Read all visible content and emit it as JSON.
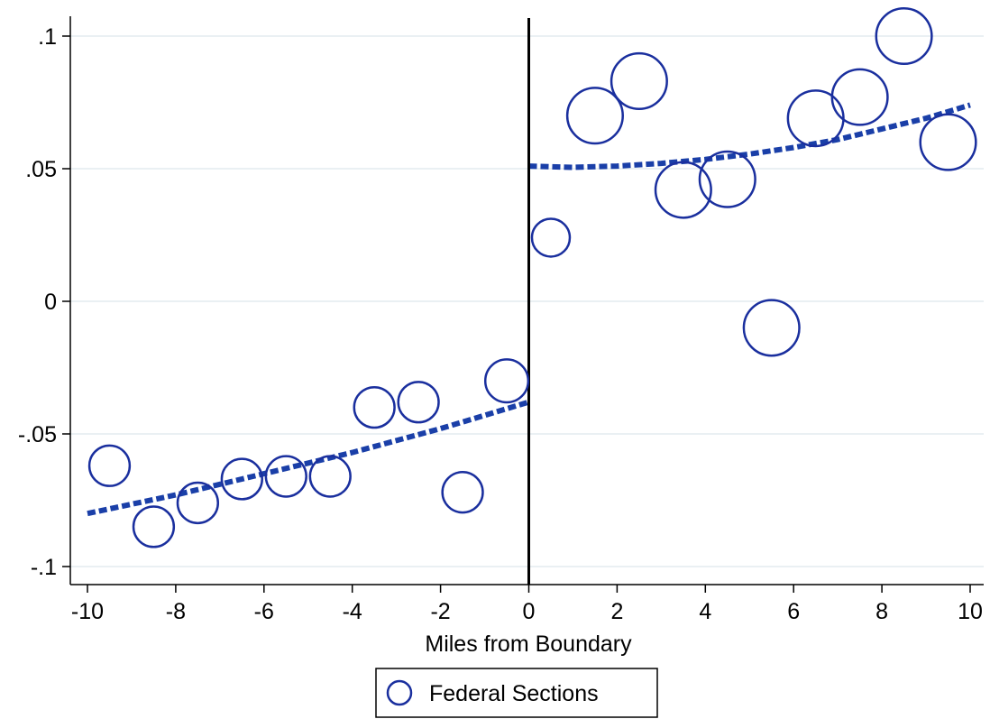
{
  "chart_data": {
    "type": "scatter",
    "xlabel": "Miles from Boundary",
    "ylabel": "",
    "xlim": [
      -10,
      10
    ],
    "ylim": [
      -0.1,
      0.1
    ],
    "x_ticks": [
      -10,
      -8,
      -6,
      -4,
      -2,
      0,
      2,
      4,
      6,
      8,
      10
    ],
    "x_tick_labels": [
      "-10",
      "-8",
      "-6",
      "-4",
      "-2",
      "0",
      "2",
      "4",
      "6",
      "8",
      "10"
    ],
    "y_ticks": [
      0.1,
      0.05,
      0,
      -0.05,
      -0.1
    ],
    "y_tick_labels": [
      ".1",
      ".05",
      "0",
      "-.05",
      "-.1"
    ],
    "grid": true,
    "boundary_x": 0,
    "legend": {
      "position": "bottom",
      "entries": [
        "Federal Sections"
      ]
    },
    "series": [
      {
        "name": "Federal Sections",
        "marker": "hollow-circle",
        "color": "#1a2f9e",
        "points": [
          {
            "x": -9.5,
            "y": -0.062,
            "weight": 0.8
          },
          {
            "x": -8.5,
            "y": -0.085,
            "weight": 0.8
          },
          {
            "x": -7.5,
            "y": -0.076,
            "weight": 0.8
          },
          {
            "x": -6.5,
            "y": -0.067,
            "weight": 0.8
          },
          {
            "x": -5.5,
            "y": -0.066,
            "weight": 0.8
          },
          {
            "x": -4.5,
            "y": -0.066,
            "weight": 0.8
          },
          {
            "x": -3.5,
            "y": -0.04,
            "weight": 0.8
          },
          {
            "x": -2.5,
            "y": -0.038,
            "weight": 0.8
          },
          {
            "x": -1.5,
            "y": -0.072,
            "weight": 0.8
          },
          {
            "x": -0.5,
            "y": -0.03,
            "weight": 0.85
          },
          {
            "x": 0.5,
            "y": 0.024,
            "weight": 0.75
          },
          {
            "x": 1.5,
            "y": 0.07,
            "weight": 1.1
          },
          {
            "x": 2.5,
            "y": 0.083,
            "weight": 1.1
          },
          {
            "x": 3.5,
            "y": 0.042,
            "weight": 1.1
          },
          {
            "x": 4.5,
            "y": 0.046,
            "weight": 1.1
          },
          {
            "x": 5.5,
            "y": -0.01,
            "weight": 1.1
          },
          {
            "x": 6.5,
            "y": 0.069,
            "weight": 1.1
          },
          {
            "x": 7.5,
            "y": 0.077,
            "weight": 1.1
          },
          {
            "x": 8.5,
            "y": 0.1,
            "weight": 1.1
          },
          {
            "x": 9.5,
            "y": 0.06,
            "weight": 1.1
          }
        ]
      }
    ],
    "fit_lines": [
      {
        "style": "dashed",
        "color": "#1a3fa8",
        "points": [
          {
            "x": -10,
            "y": -0.08
          },
          {
            "x": -8,
            "y": -0.073
          },
          {
            "x": -6,
            "y": -0.065
          },
          {
            "x": -4,
            "y": -0.057
          },
          {
            "x": -2,
            "y": -0.048
          },
          {
            "x": 0,
            "y": -0.038
          }
        ]
      },
      {
        "style": "dashed",
        "color": "#1a3fa8",
        "points": [
          {
            "x": 0,
            "y": 0.051
          },
          {
            "x": 1,
            "y": 0.0505
          },
          {
            "x": 2,
            "y": 0.051
          },
          {
            "x": 3,
            "y": 0.052
          },
          {
            "x": 4,
            "y": 0.0535
          },
          {
            "x": 5,
            "y": 0.0555
          },
          {
            "x": 6,
            "y": 0.058
          },
          {
            "x": 7,
            "y": 0.061
          },
          {
            "x": 8,
            "y": 0.065
          },
          {
            "x": 9,
            "y": 0.069
          },
          {
            "x": 10,
            "y": 0.074
          }
        ]
      }
    ]
  }
}
